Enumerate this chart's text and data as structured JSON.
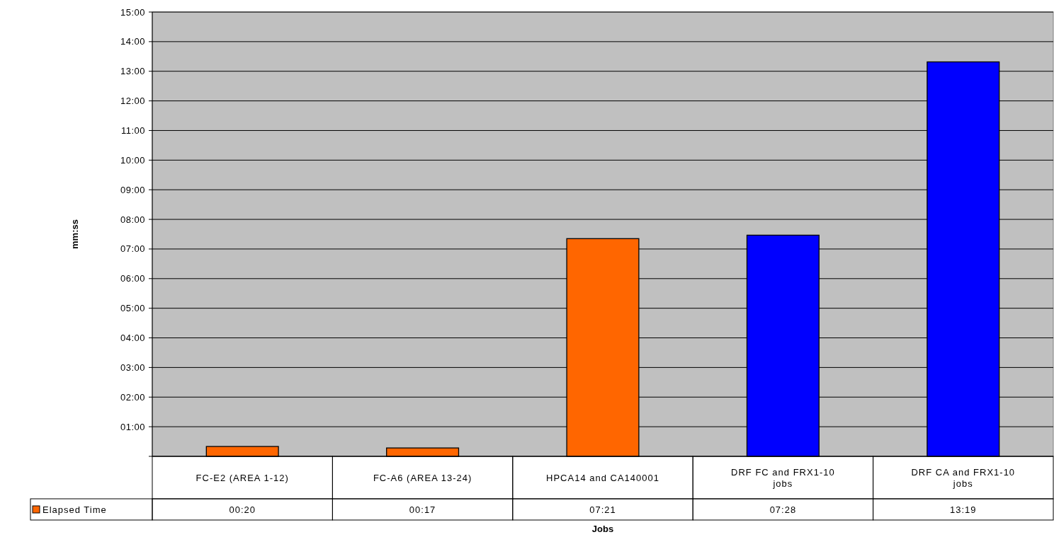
{
  "chart_data": {
    "type": "bar",
    "xlabel": "Jobs",
    "ylabel": "mm:ss",
    "categories": [
      "FC-E2 (AREA 1-12)",
      "FC-A6 (AREA 13-24)",
      "HPCA14 and CA140001",
      "DRF FC and FRX1-10 jobs",
      "DRF CA and FRX1-10 jobs"
    ],
    "series": [
      {
        "name": "Elapsed Time",
        "color": "#ff6600",
        "colors": [
          "#ff6600",
          "#ff6600",
          "#ff6600",
          "#0000ff",
          "#0000ff"
        ],
        "values": [
          20,
          17,
          441,
          448,
          799
        ],
        "value_labels": [
          "00:20",
          "00:17",
          "07:21",
          "07:28",
          "13:19"
        ]
      }
    ],
    "ylim": [
      0,
      900
    ],
    "yticks": [
      {
        "value": 0,
        "label": null
      },
      {
        "value": 60,
        "label": "01:00"
      },
      {
        "value": 120,
        "label": "02:00"
      },
      {
        "value": 180,
        "label": "03:00"
      },
      {
        "value": 240,
        "label": "04:00"
      },
      {
        "value": 300,
        "label": "05:00"
      },
      {
        "value": 360,
        "label": "06:00"
      },
      {
        "value": 420,
        "label": "07:00"
      },
      {
        "value": 480,
        "label": "08:00"
      },
      {
        "value": 540,
        "label": "09:00"
      },
      {
        "value": 600,
        "label": "10:00"
      },
      {
        "value": 660,
        "label": "11:00"
      },
      {
        "value": 720,
        "label": "12:00"
      },
      {
        "value": 780,
        "label": "13:00"
      },
      {
        "value": 840,
        "label": "14:00"
      },
      {
        "value": 900,
        "label": "15:00"
      }
    ],
    "grid": "y",
    "legend": "bottom"
  }
}
